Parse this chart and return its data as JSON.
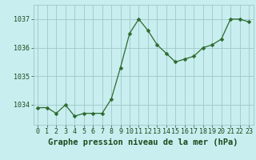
{
  "x": [
    0,
    1,
    2,
    3,
    4,
    5,
    6,
    7,
    8,
    9,
    10,
    11,
    12,
    13,
    14,
    15,
    16,
    17,
    18,
    19,
    20,
    21,
    22,
    23
  ],
  "y": [
    1033.9,
    1033.9,
    1033.7,
    1034.0,
    1033.6,
    1033.7,
    1033.7,
    1033.7,
    1034.2,
    1035.3,
    1036.5,
    1037.0,
    1036.6,
    1036.1,
    1035.8,
    1035.5,
    1035.6,
    1035.7,
    1036.0,
    1036.1,
    1036.3,
    1037.0,
    1037.0,
    1036.9
  ],
  "line_color": "#2d6a2d",
  "marker": "D",
  "marker_size": 2.5,
  "bg_color": "#c8eef0",
  "grid_color": "#a0c8c8",
  "xlabel": "Graphe pression niveau de la mer (hPa)",
  "xlabel_color": "#1a4a1a",
  "xlabel_fontsize": 7.5,
  "tick_color": "#1a4a1a",
  "tick_fontsize": 6,
  "yticks": [
    1034,
    1035,
    1036,
    1037
  ],
  "ylim": [
    1033.3,
    1037.5
  ],
  "xlim": [
    -0.5,
    23.5
  ]
}
